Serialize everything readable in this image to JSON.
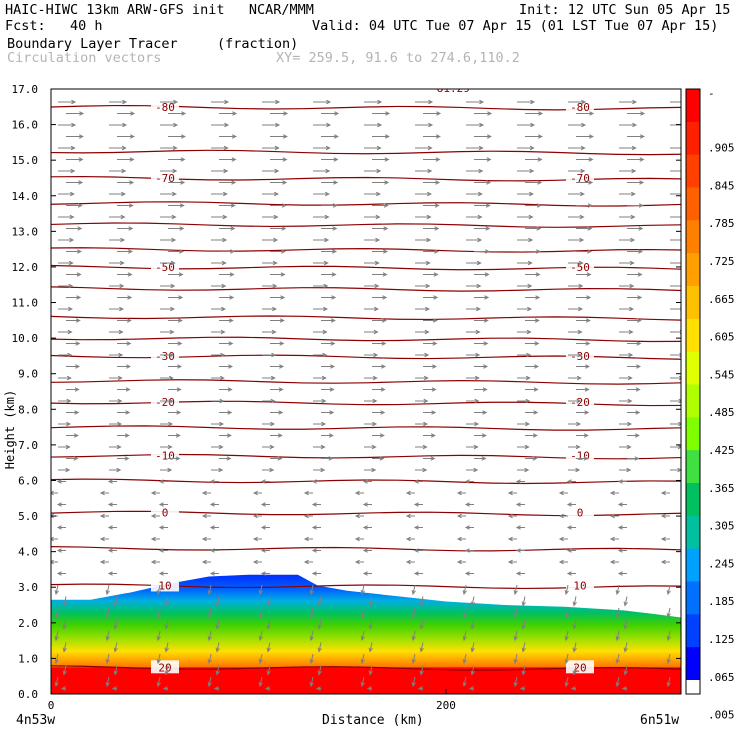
{
  "header": {
    "model": "HAIC-HIWC 13km ARW-GFS init   NCAR/MMM",
    "init": "Init: 12 UTC Sun 05 Apr 15",
    "fcst": "Fcst:   40 h",
    "valid": "Valid: 04 UTC Tue 07 Apr 15 (01 LST Tue 07 Apr 15)",
    "field": "Boundary Layer Tracer",
    "field_units": "(fraction)",
    "overlay": "Circulation vectors",
    "xy": "XY= 259.5, 91.6 to 274.6,110.2"
  },
  "footer": {
    "left_label": "4n53w",
    "xlabel": "Distance (km)",
    "right_label": "6n51w"
  },
  "chart_data": {
    "type": "heatmap",
    "title": "Boundary Layer Tracer",
    "ylabel": "Height (km)",
    "xlabel": "Distance (km)",
    "xlim": [
      0,
      319
    ],
    "ylim": [
      0,
      17
    ],
    "x_ticks": [
      0,
      200
    ],
    "y_ticks": [
      0.0,
      1.0,
      2.0,
      3.0,
      4.0,
      5.0,
      6.0,
      7.0,
      8.0,
      9.0,
      10.0,
      11.0,
      12.0,
      13.0,
      14.0,
      15.0,
      16.0,
      17.0
    ],
    "y_tick_labels": [
      "0.0",
      "1.0",
      "2.0",
      "3.0",
      "4.0",
      "5.0",
      "6.0",
      "7.0",
      "8.0",
      "9.0",
      "10.0",
      "11.0",
      "12.0",
      "13.0",
      "14.0",
      "15.0",
      "16.0",
      "17.0"
    ],
    "colorbar": {
      "labels": [
        "-",
        ".905",
        ".845",
        ".785",
        ".725",
        ".665",
        ".605",
        ".545",
        ".485",
        ".425",
        ".365",
        ".305",
        ".245",
        ".185",
        ".125",
        ".065",
        ".005"
      ],
      "colors": [
        "#ff0000",
        "#ff2000",
        "#ff4000",
        "#ff6000",
        "#ff8000",
        "#ffa000",
        "#ffc000",
        "#ffe000",
        "#e0ff00",
        "#b0ff00",
        "#80ff00",
        "#40e040",
        "#00c060",
        "#00c0a0",
        "#00a0ff",
        "#0070ff",
        "#0040ff",
        "#0000ff"
      ]
    },
    "tracer_top_km": [
      [
        0,
        2.65
      ],
      [
        20,
        2.65
      ],
      [
        40,
        2.85
      ],
      [
        60,
        3.1
      ],
      [
        80,
        3.3
      ],
      [
        100,
        3.35
      ],
      [
        125,
        3.35
      ],
      [
        135,
        3.05
      ],
      [
        150,
        2.9
      ],
      [
        175,
        2.75
      ],
      [
        200,
        2.6
      ],
      [
        230,
        2.5
      ],
      [
        260,
        2.45
      ],
      [
        290,
        2.35
      ],
      [
        305,
        2.25
      ],
      [
        319,
        2.15
      ]
    ],
    "isotherms": [
      {
        "label": "-80",
        "height_km": 16.5
      },
      {
        "label": "-70",
        "height_km": 14.5
      },
      {
        "label": "-50",
        "height_km": 12.0
      },
      {
        "label": "-30",
        "height_km": 9.5
      },
      {
        "label": "-20",
        "height_km": 8.2
      },
      {
        "label": "-10",
        "height_km": 6.7
      },
      {
        "label": "0",
        "height_km": 5.1
      },
      {
        "label": "10",
        "height_km": 3.05
      },
      {
        "label": "20",
        "height_km": 0.75
      }
    ],
    "top_isotherm_label": "-81.29",
    "extra_contour_heights_km": [
      17.5,
      15.25,
      13.8,
      13.2,
      12.5,
      11.4,
      10.6,
      10.0,
      8.8,
      7.5,
      6.0,
      4.1
    ],
    "vectors": "westerly aloft, easterly in lower layers, nearly vertical in boundary layer"
  },
  "colors": {
    "contour": "#8b0000",
    "vector": "#808080",
    "text_gray": "#b4b4b4"
  }
}
